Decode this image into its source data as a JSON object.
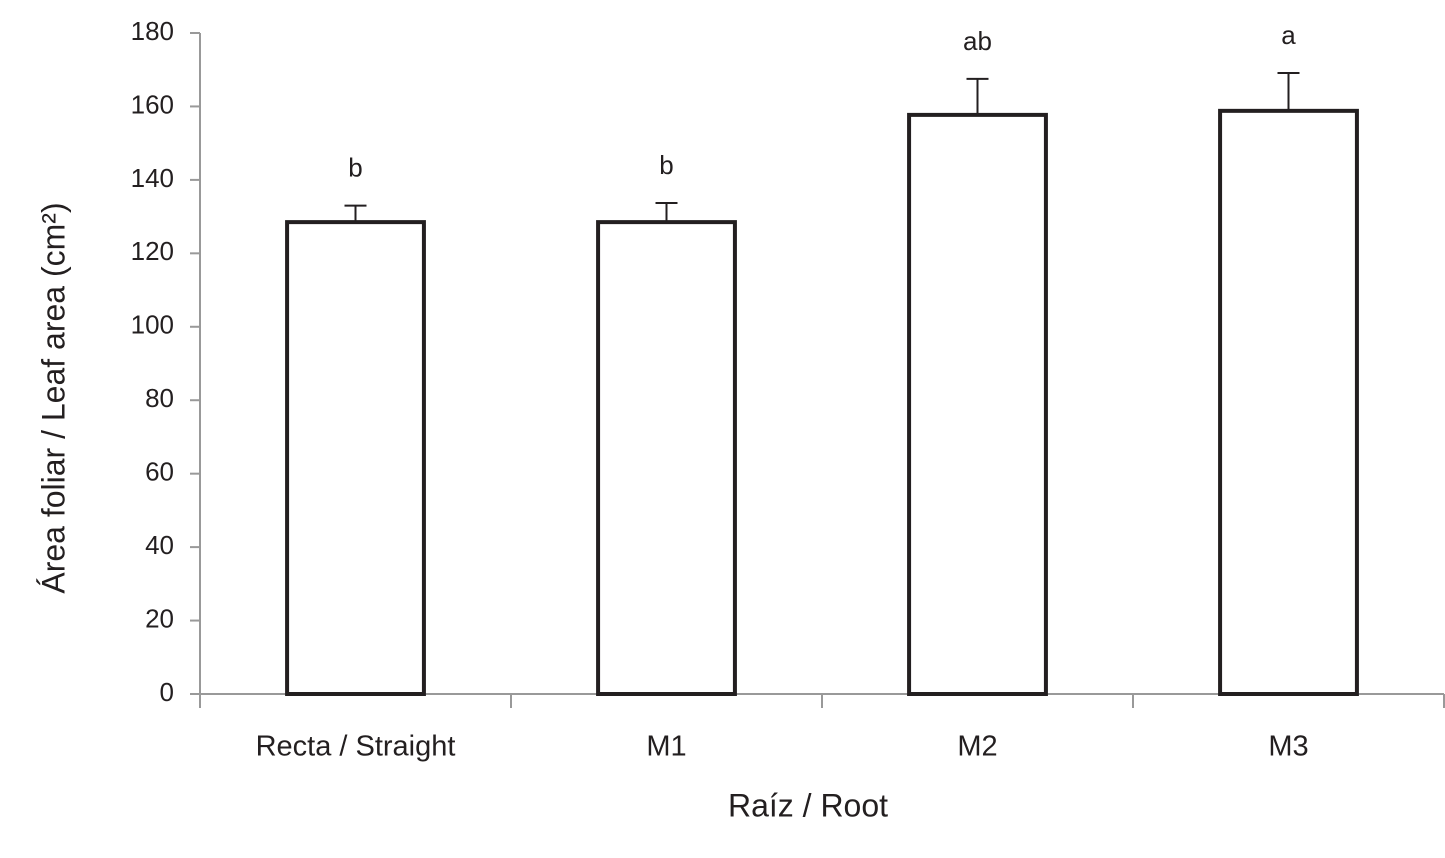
{
  "chart_data": {
    "type": "bar",
    "y_label": "Área foliar / Leaf area (cm²)",
    "x_label": "Raíz / Root",
    "categories": [
      "Recta / Straight",
      "M1",
      "M2",
      "M3"
    ],
    "values": [
      128.5,
      128.5,
      157.7,
      158.8
    ],
    "errors": [
      4.5,
      5.2,
      9.8,
      10.3
    ],
    "annotations": [
      "b",
      "b",
      "ab",
      "a"
    ],
    "color": "#ffffff",
    "ylim": [
      0,
      180
    ],
    "yticks": [
      0,
      20,
      40,
      60,
      80,
      100,
      120,
      140,
      160,
      180
    ],
    "grid": false
  }
}
